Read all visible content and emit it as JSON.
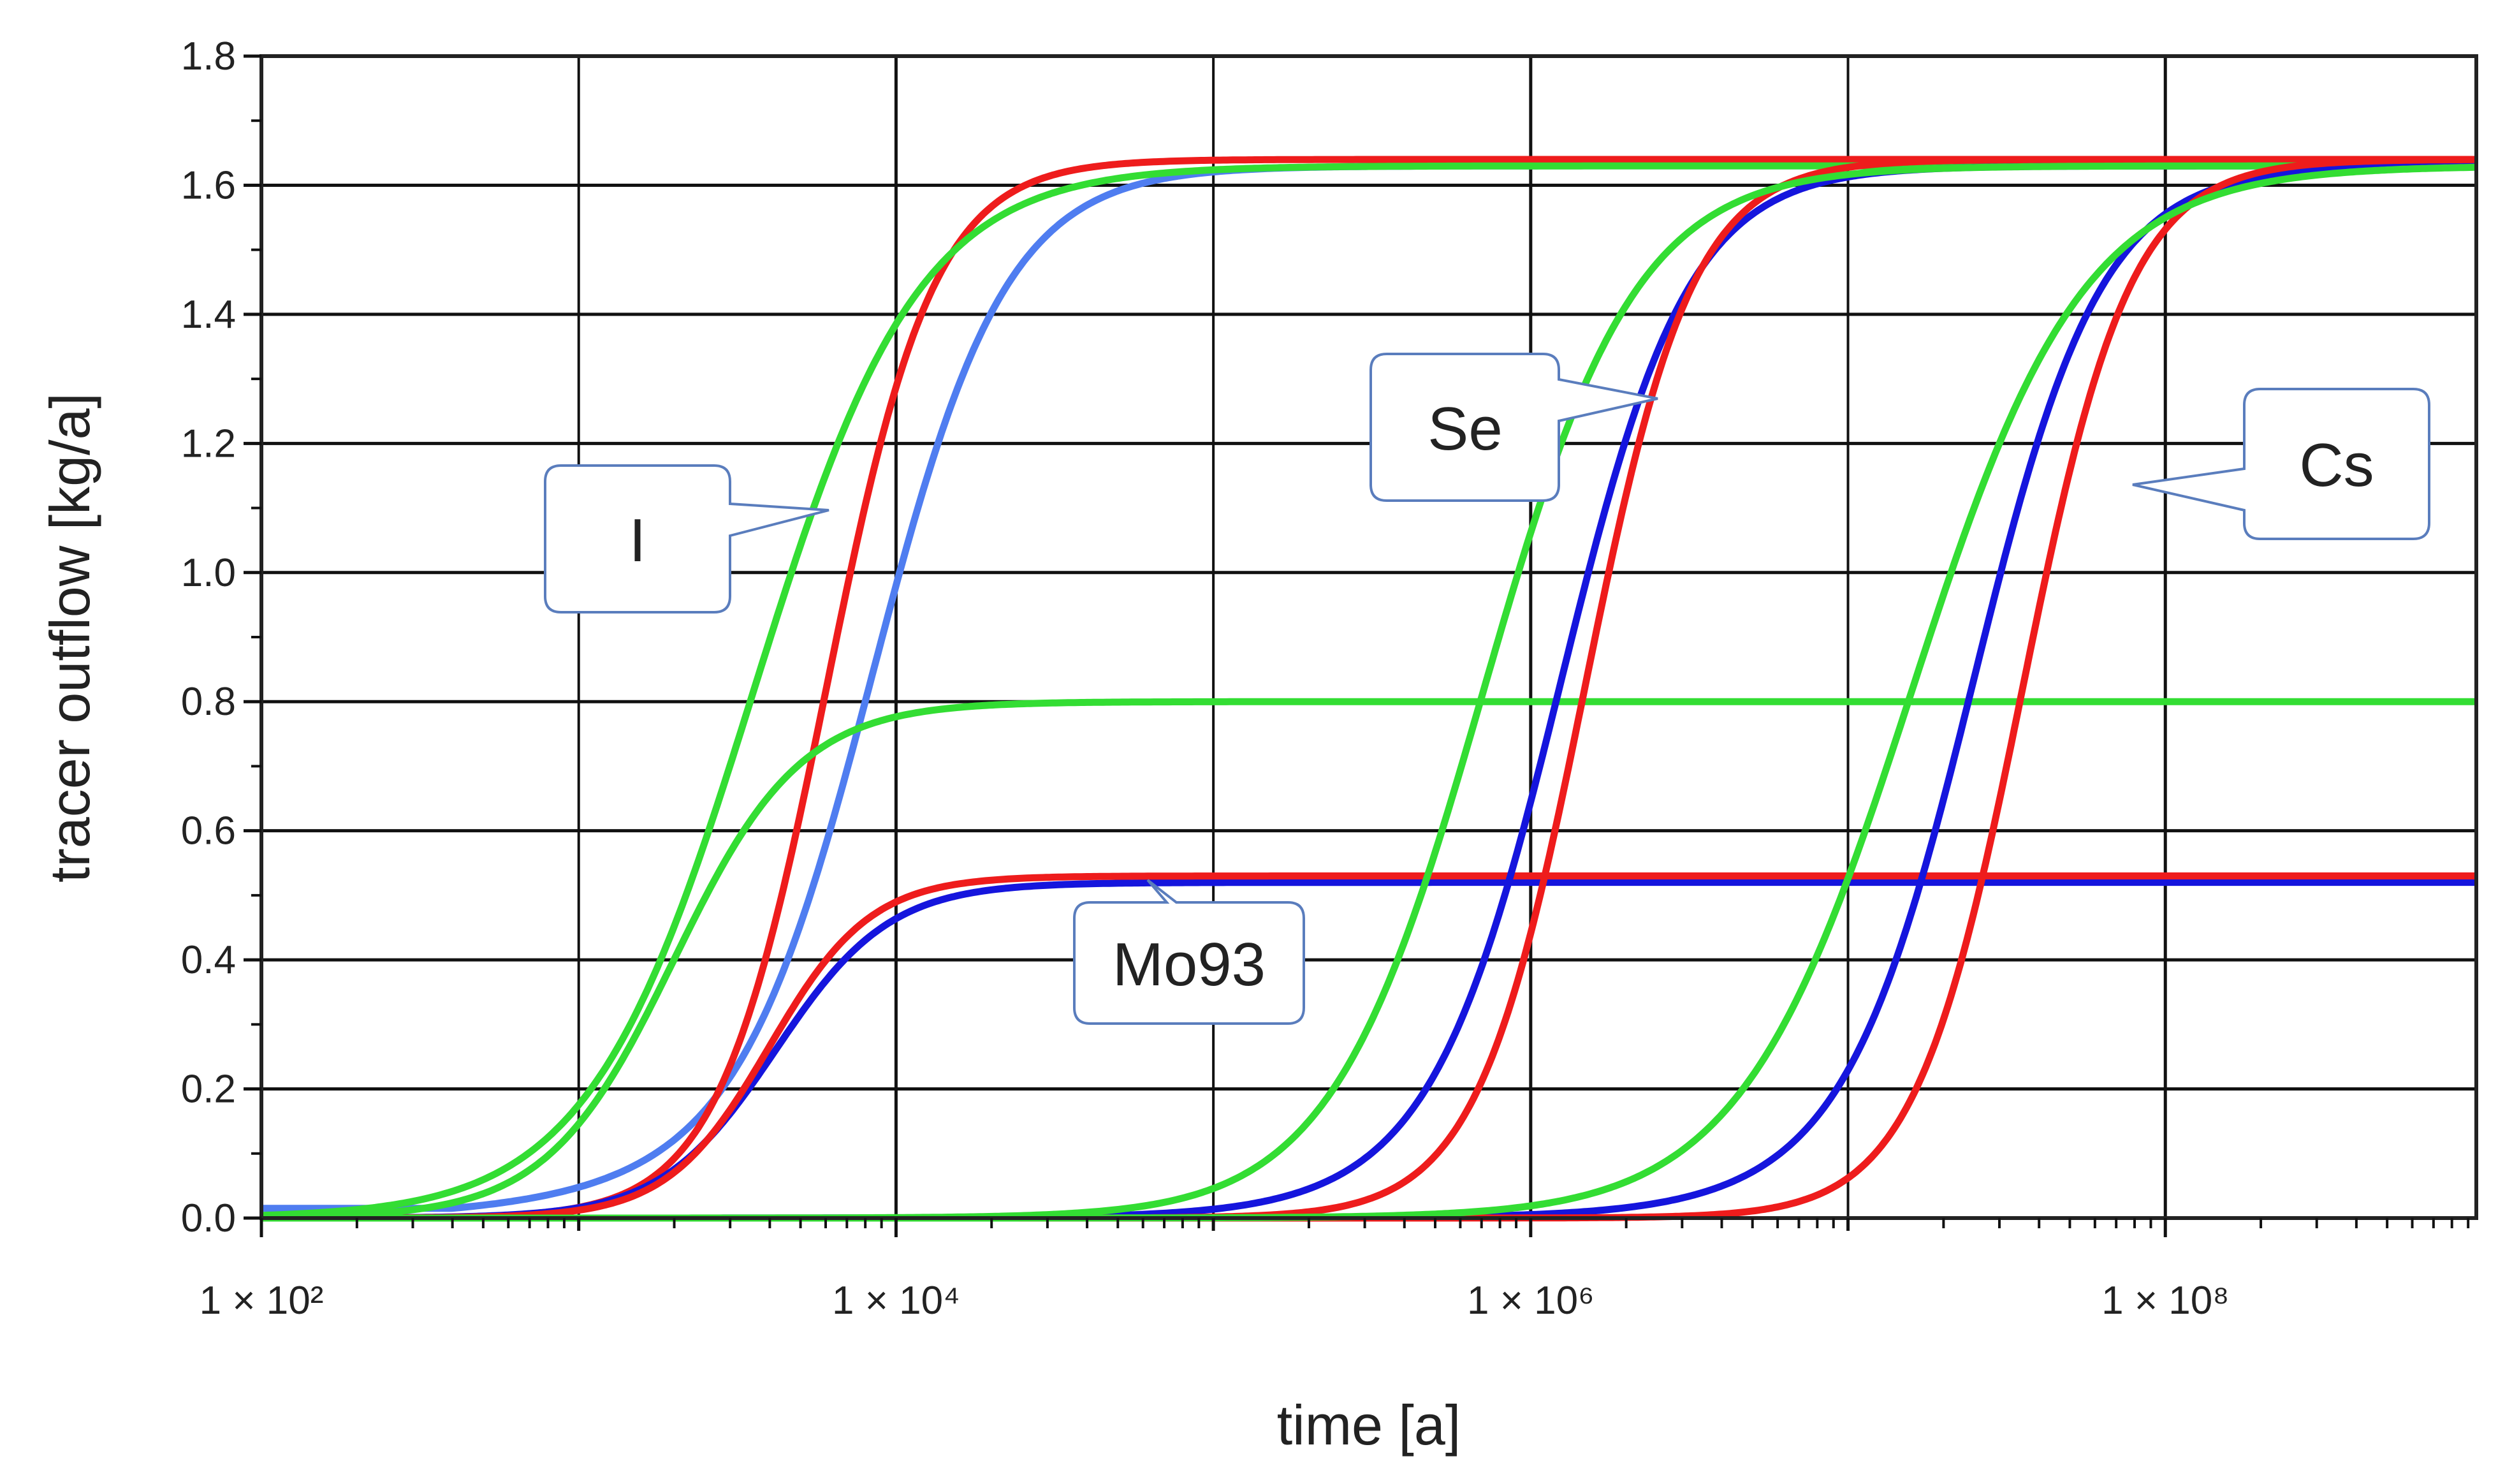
{
  "chart_data": {
    "type": "line",
    "title": "",
    "xlabel": "time [a]",
    "ylabel": "tracer outflow [kg/a]",
    "x_scale": "log10",
    "xlim_log10": [
      2,
      8.98
    ],
    "ylim": [
      0,
      1.8
    ],
    "grid": true,
    "x_major_ticks": [
      {
        "log10": 2,
        "label": "1 × 10²"
      },
      {
        "log10": 4,
        "label": "1 × 10⁴"
      },
      {
        "log10": 6,
        "label": "1 × 10⁶"
      },
      {
        "log10": 8,
        "label": "1 × 10⁸"
      }
    ],
    "y_ticks": [
      "0.0",
      "0.2",
      "0.4",
      "0.6",
      "0.8",
      "1.0",
      "1.2",
      "1.4",
      "1.6",
      "1.8"
    ],
    "series": [
      {
        "name": "I - light blue",
        "color": "#4f7df0",
        "model": {
          "kind": "sigmoid",
          "amp": 1.63,
          "center_log10": 3.93,
          "width": 0.21,
          "base": 0.015,
          "tail_center": 3.2,
          "tail_width": 0.35,
          "tail_amp": 0.08
        }
      },
      {
        "name": "I - red",
        "color": "#ee1c1c",
        "model": {
          "kind": "sigmoid",
          "amp": 1.64,
          "center_log10": 3.78,
          "width": 0.17
        }
      },
      {
        "name": "I - green",
        "color": "#33dd33",
        "model": {
          "kind": "sigmoid",
          "amp": 1.63,
          "center_log10": 3.55,
          "width": 0.26
        }
      },
      {
        "name": "Mo93 - blue",
        "color": "#1515dd",
        "model": {
          "kind": "sigmoid",
          "amp": 0.52,
          "center_log10": 3.62,
          "width": 0.18
        }
      },
      {
        "name": "Mo93 - red",
        "color": "#ee1c1c",
        "model": {
          "kind": "sigmoid",
          "amp": 0.53,
          "center_log10": 3.6,
          "width": 0.16
        }
      },
      {
        "name": "Mo93 - green",
        "color": "#33dd33",
        "model": {
          "kind": "sigmoid",
          "amp": 0.8,
          "center_log10": 3.3,
          "width": 0.2
        }
      },
      {
        "name": "Se - blue",
        "color": "#1515dd",
        "model": {
          "kind": "sigmoid",
          "amp": 1.63,
          "center_log10": 6.1,
          "width": 0.2,
          "tail_center": 5.6,
          "tail_width": 0.3,
          "tail_amp": 0.06
        }
      },
      {
        "name": "Se - red",
        "color": "#ee1c1c",
        "model": {
          "kind": "sigmoid",
          "amp": 1.64,
          "center_log10": 6.17,
          "width": 0.17
        }
      },
      {
        "name": "Se - green",
        "color": "#33dd33",
        "model": {
          "kind": "sigmoid",
          "amp": 1.63,
          "center_log10": 5.85,
          "width": 0.24
        }
      },
      {
        "name": "Cs - blue",
        "color": "#1515dd",
        "model": {
          "kind": "sigmoid",
          "amp": 1.63,
          "center_log10": 7.4,
          "width": 0.2,
          "tail_center": 6.8,
          "tail_width": 0.3,
          "tail_amp": 0.06
        }
      },
      {
        "name": "Cs - red",
        "color": "#ee1c1c",
        "model": {
          "kind": "sigmoid",
          "amp": 1.64,
          "center_log10": 7.55,
          "width": 0.17
        }
      },
      {
        "name": "Cs - green",
        "color": "#33dd33",
        "model": {
          "kind": "sigmoid",
          "amp": 1.63,
          "center_log10": 7.2,
          "width": 0.27
        }
      }
    ],
    "annotations": [
      {
        "text": "I"
      },
      {
        "text": "Se"
      },
      {
        "text": "Cs"
      },
      {
        "text": "Mo93"
      }
    ]
  }
}
